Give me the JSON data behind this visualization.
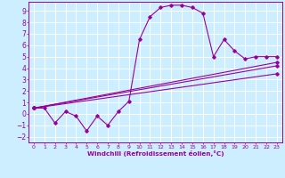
{
  "xlabel": "Windchill (Refroidissement éolien,°C)",
  "bg_color": "#cceeff",
  "grid_color": "#ffffff",
  "line_color": "#990099",
  "xlim": [
    -0.5,
    23.5
  ],
  "ylim": [
    -2.5,
    9.8
  ],
  "xticks": [
    0,
    1,
    2,
    3,
    4,
    5,
    6,
    7,
    8,
    9,
    10,
    11,
    12,
    13,
    14,
    15,
    16,
    17,
    18,
    19,
    20,
    21,
    22,
    23
  ],
  "yticks": [
    -2,
    -1,
    0,
    1,
    2,
    3,
    4,
    5,
    6,
    7,
    8,
    9
  ],
  "line1_x": [
    0,
    23
  ],
  "line1_y": [
    0.5,
    4.5
  ],
  "line2_x": [
    0,
    23
  ],
  "line2_y": [
    0.5,
    4.2
  ],
  "line3_x": [
    0,
    23
  ],
  "line3_y": [
    0.5,
    3.5
  ],
  "main_x": [
    0,
    1,
    2,
    3,
    4,
    5,
    6,
    7,
    8,
    9,
    10,
    11,
    12,
    13,
    14,
    15,
    16,
    17,
    18,
    19,
    20,
    21,
    22,
    23
  ],
  "main_y": [
    0.5,
    0.5,
    -0.8,
    0.2,
    -0.2,
    -1.5,
    -0.2,
    -1.0,
    0.2,
    1.1,
    6.5,
    8.5,
    9.3,
    9.5,
    9.5,
    9.3,
    8.8,
    5.0,
    6.5,
    5.5,
    4.8,
    5.0,
    5.0,
    5.0
  ]
}
